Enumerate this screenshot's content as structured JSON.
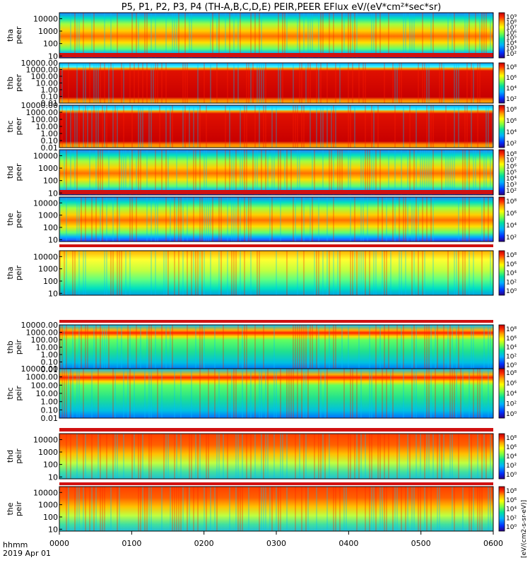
{
  "title": "P5, P1, P2, P3, P4 (TH-A,B,C,D,E) PEIR,PEER EFlux eV/(eV*cm²*sec*sr)",
  "time_axis": {
    "label_top": "hhmm",
    "label_bottom": "2019 Apr 01",
    "ticks": [
      "0000",
      "0100",
      "0200",
      "0300",
      "0400",
      "0500",
      "0600"
    ]
  },
  "colorbar_label": "[eV/(cm2-s-sr-eV)]",
  "colors": {
    "scale": [
      "#1a0080",
      "#0040ff",
      "#00b0ff",
      "#00e0a0",
      "#80ff40",
      "#ffff00",
      "#ffb000",
      "#ff5000",
      "#d00000"
    ],
    "fill_line": "#d01010",
    "background": "#ffffff"
  },
  "chart_data": {
    "type": "heatmap",
    "title": "P5, P1, P2, P3, P4 (TH-A,B,C,D,E) PEIR,PEER EFlux eV/(eV*cm²*sec*sr)",
    "x_range": [
      "0000",
      "0600"
    ],
    "panels": [
      {
        "probe": "tha",
        "species": "peer",
        "yscale": "log",
        "ylim": [
          7,
          30000
        ],
        "yticks": [
          "10",
          "100",
          "1000",
          "10000"
        ],
        "cbar_ticks": [
          "10⁹",
          "10⁸",
          "10⁷",
          "10⁶",
          "10⁵",
          "10⁴",
          "10³",
          "10²"
        ],
        "fill_pattern": "high",
        "low_edge": "red"
      },
      {
        "probe": "thb",
        "species": "peer",
        "yscale": "log",
        "ylim": [
          0.01,
          10000
        ],
        "yticks": [
          "0.01",
          "0.10",
          "1.00",
          "10.00",
          "100.00",
          "1000.00",
          "10000.00"
        ],
        "cbar_ticks": [
          "10⁸",
          "10⁶",
          "10⁴",
          "10²"
        ],
        "fill_pattern": "banded-red"
      },
      {
        "probe": "thc",
        "species": "peer",
        "yscale": "log",
        "ylim": [
          0.01,
          10000
        ],
        "yticks": [
          "0.01",
          "0.10",
          "1.00",
          "10.00",
          "100.00",
          "1000.00",
          "10000.00"
        ],
        "cbar_ticks": [
          "10⁸",
          "10⁶",
          "10⁴",
          "10²"
        ],
        "fill_pattern": "banded-red"
      },
      {
        "probe": "thd",
        "species": "peer",
        "yscale": "log",
        "ylim": [
          7,
          30000
        ],
        "yticks": [
          "10",
          "100",
          "1000",
          "10000"
        ],
        "cbar_ticks": [
          "10⁸",
          "10⁷",
          "10⁶",
          "10⁵",
          "10⁴",
          "10³",
          "10²"
        ],
        "fill_pattern": "high",
        "low_edge": "red"
      },
      {
        "probe": "the",
        "species": "peer",
        "yscale": "log",
        "ylim": [
          7,
          30000
        ],
        "yticks": [
          "10",
          "100",
          "1000",
          "10000"
        ],
        "cbar_ticks": [
          "10⁸",
          "10⁶",
          "10⁴",
          "10²"
        ],
        "fill_pattern": "high"
      },
      {
        "probe": "tha",
        "species": "peir",
        "yscale": "log",
        "ylim": [
          7,
          30000
        ],
        "yticks": [
          "10",
          "100",
          "1000",
          "10000"
        ],
        "cbar_ticks": [
          "10⁸",
          "10⁶",
          "10⁴",
          "10²",
          "10⁰"
        ],
        "fill_pattern": "mid"
      },
      {
        "probe": "thb",
        "species": "peir",
        "yscale": "log",
        "ylim": [
          0.01,
          10000
        ],
        "yticks": [
          "0.01",
          "0.10",
          "1.00",
          "10.00",
          "100.00",
          "1000.00",
          "10000.00"
        ],
        "cbar_ticks": [
          "10⁸",
          "10⁶",
          "10⁴",
          "10²",
          "10⁰"
        ],
        "fill_pattern": "low-green"
      },
      {
        "probe": "thc",
        "species": "peir",
        "yscale": "log",
        "ylim": [
          0.01,
          10000
        ],
        "yticks": [
          "0.01",
          "0.10",
          "1.00",
          "10.00",
          "100.00",
          "1000.00",
          "10000.00"
        ],
        "cbar_ticks": [
          "10⁸",
          "10⁶",
          "10⁴",
          "10²",
          "10⁰"
        ],
        "fill_pattern": "low-green"
      },
      {
        "probe": "thd",
        "species": "peir",
        "yscale": "log",
        "ylim": [
          7,
          30000
        ],
        "yticks": [
          "10",
          "100",
          "1000",
          "10000"
        ],
        "cbar_ticks": [
          "10⁸",
          "10⁶",
          "10⁴",
          "10²",
          "10⁰"
        ],
        "fill_pattern": "high-peir"
      },
      {
        "probe": "the",
        "species": "peir",
        "yscale": "log",
        "ylim": [
          7,
          30000
        ],
        "yticks": [
          "10",
          "100",
          "1000",
          "10000"
        ],
        "cbar_ticks": [
          "10⁸",
          "10⁶",
          "10⁴",
          "10²",
          "10⁰"
        ],
        "fill_pattern": "high-peir"
      }
    ]
  }
}
